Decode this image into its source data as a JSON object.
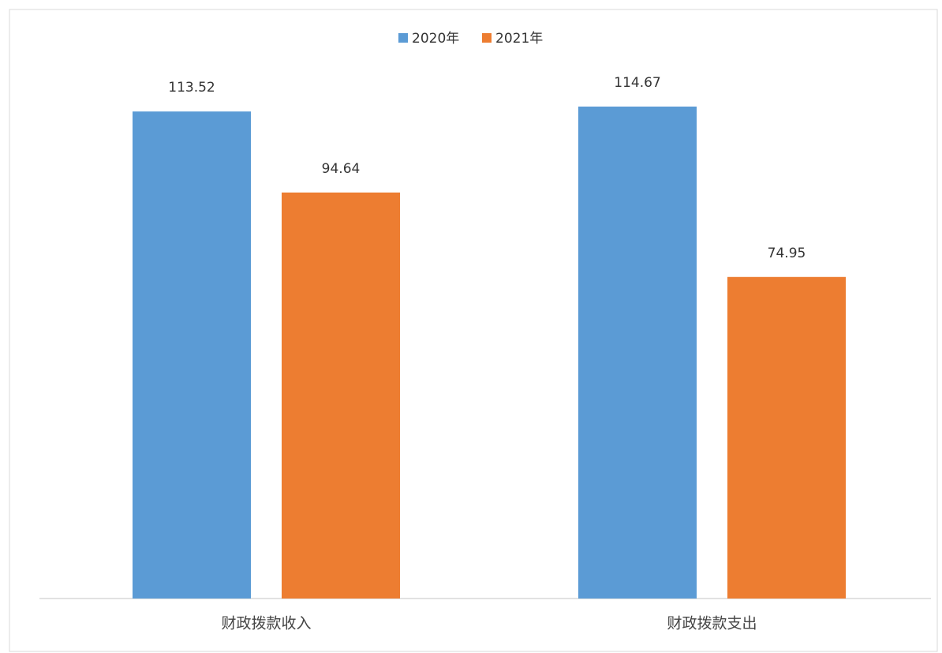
{
  "chart_data": {
    "type": "bar",
    "categories": [
      "财政拨款收入",
      "财政拨款支出"
    ],
    "series": [
      {
        "name": "2020年",
        "color": "#5b9bd5",
        "values": [
          113.52,
          114.67
        ]
      },
      {
        "name": "2021年",
        "color": "#ed7d31",
        "values": [
          94.64,
          74.95
        ]
      }
    ],
    "ylim": [
      0,
      120
    ],
    "legend": "top"
  }
}
